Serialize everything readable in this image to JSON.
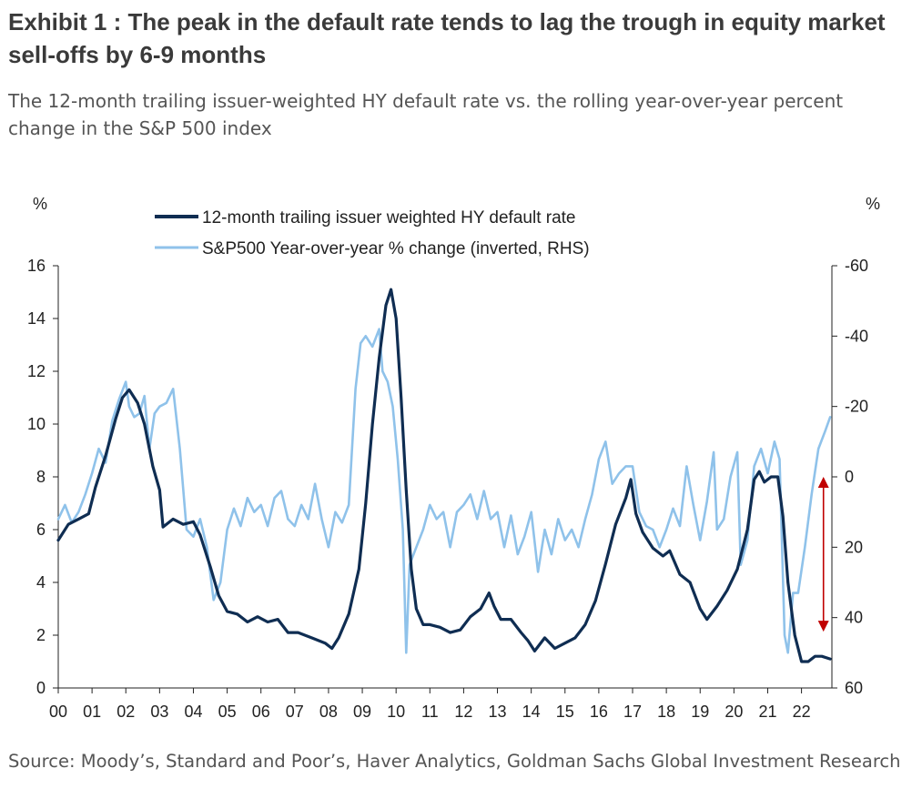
{
  "title": "Exhibit 1 : The peak in the default rate tends to lag the trough in equity market sell-offs by 6-9 months",
  "subtitle": "The 12-month trailing issuer-weighted HY default rate vs. the rolling year-over-year percent change in the S&P 500 index",
  "source": "Source: Moody’s, Standard and Poor’s, Haver Analytics, Goldman Sachs Global Investment Research",
  "colors": {
    "default_rate": "#0f2d52",
    "sp500": "#8fc2ea",
    "arrow": "#c00000",
    "axis": "#222222"
  },
  "chart_data": {
    "type": "line",
    "left_axis": {
      "unit": "%",
      "min": 0,
      "max": 16,
      "ticks": [
        0,
        2,
        4,
        6,
        8,
        10,
        12,
        14,
        16
      ]
    },
    "right_axis": {
      "unit": "%",
      "min": -60,
      "max": 60,
      "inverted": true,
      "ticks": [
        -60,
        -40,
        -20,
        0,
        20,
        40,
        60
      ]
    },
    "x_axis": {
      "min": 2000,
      "max": 2022.9,
      "tick_labels": [
        "00",
        "01",
        "02",
        "03",
        "04",
        "05",
        "06",
        "07",
        "08",
        "09",
        "10",
        "11",
        "12",
        "13",
        "14",
        "15",
        "16",
        "17",
        "18",
        "19",
        "20",
        "21",
        "22"
      ]
    },
    "grid": false,
    "legend": "top-center",
    "series": [
      {
        "name": "12-month trailing issuer weighted HY default rate",
        "axis": "left",
        "points": [
          [
            2000.0,
            5.6
          ],
          [
            2000.3,
            6.2
          ],
          [
            2000.6,
            6.4
          ],
          [
            2000.9,
            6.6
          ],
          [
            2001.1,
            7.6
          ],
          [
            2001.4,
            8.8
          ],
          [
            2001.7,
            10.2
          ],
          [
            2001.9,
            11.0
          ],
          [
            2002.1,
            11.3
          ],
          [
            2002.35,
            10.8
          ],
          [
            2002.55,
            10.0
          ],
          [
            2002.8,
            8.4
          ],
          [
            2003.0,
            7.5
          ],
          [
            2003.1,
            6.1
          ],
          [
            2003.4,
            6.4
          ],
          [
            2003.7,
            6.2
          ],
          [
            2004.0,
            6.3
          ],
          [
            2004.2,
            5.8
          ],
          [
            2004.5,
            4.6
          ],
          [
            2004.75,
            3.5
          ],
          [
            2005.0,
            2.9
          ],
          [
            2005.3,
            2.8
          ],
          [
            2005.6,
            2.5
          ],
          [
            2005.9,
            2.7
          ],
          [
            2006.2,
            2.5
          ],
          [
            2006.5,
            2.6
          ],
          [
            2006.8,
            2.1
          ],
          [
            2007.1,
            2.1
          ],
          [
            2007.5,
            1.9
          ],
          [
            2007.9,
            1.7
          ],
          [
            2008.1,
            1.5
          ],
          [
            2008.3,
            1.9
          ],
          [
            2008.6,
            2.8
          ],
          [
            2008.9,
            4.5
          ],
          [
            2009.1,
            7.0
          ],
          [
            2009.3,
            10.0
          ],
          [
            2009.5,
            12.5
          ],
          [
            2009.7,
            14.5
          ],
          [
            2009.85,
            15.1
          ],
          [
            2010.0,
            14.0
          ],
          [
            2010.15,
            11.0
          ],
          [
            2010.3,
            7.5
          ],
          [
            2010.45,
            4.5
          ],
          [
            2010.6,
            3.0
          ],
          [
            2010.8,
            2.4
          ],
          [
            2011.0,
            2.4
          ],
          [
            2011.3,
            2.3
          ],
          [
            2011.6,
            2.1
          ],
          [
            2011.9,
            2.2
          ],
          [
            2012.2,
            2.7
          ],
          [
            2012.5,
            3.0
          ],
          [
            2012.75,
            3.6
          ],
          [
            2012.9,
            3.1
          ],
          [
            2013.1,
            2.6
          ],
          [
            2013.4,
            2.6
          ],
          [
            2013.7,
            2.1
          ],
          [
            2013.9,
            1.8
          ],
          [
            2014.1,
            1.4
          ],
          [
            2014.4,
            1.9
          ],
          [
            2014.7,
            1.5
          ],
          [
            2015.0,
            1.7
          ],
          [
            2015.3,
            1.9
          ],
          [
            2015.6,
            2.4
          ],
          [
            2015.9,
            3.3
          ],
          [
            2016.2,
            4.7
          ],
          [
            2016.5,
            6.2
          ],
          [
            2016.8,
            7.2
          ],
          [
            2016.95,
            7.9
          ],
          [
            2017.1,
            6.6
          ],
          [
            2017.3,
            5.9
          ],
          [
            2017.6,
            5.3
          ],
          [
            2017.9,
            5.0
          ],
          [
            2018.1,
            5.2
          ],
          [
            2018.4,
            4.3
          ],
          [
            2018.7,
            4.0
          ],
          [
            2019.0,
            3.0
          ],
          [
            2019.2,
            2.6
          ],
          [
            2019.5,
            3.1
          ],
          [
            2019.8,
            3.7
          ],
          [
            2020.1,
            4.5
          ],
          [
            2020.4,
            6.0
          ],
          [
            2020.6,
            7.9
          ],
          [
            2020.75,
            8.2
          ],
          [
            2020.9,
            7.8
          ],
          [
            2021.1,
            8.0
          ],
          [
            2021.3,
            8.0
          ],
          [
            2021.45,
            6.5
          ],
          [
            2021.6,
            4.0
          ],
          [
            2021.8,
            2.0
          ],
          [
            2022.0,
            1.0
          ],
          [
            2022.2,
            1.0
          ],
          [
            2022.4,
            1.2
          ],
          [
            2022.6,
            1.2
          ],
          [
            2022.85,
            1.1
          ]
        ]
      },
      {
        "name": "S&P500 Year-over-year % change (inverted, RHS)",
        "axis": "right",
        "points": [
          [
            2000.0,
            12
          ],
          [
            2000.2,
            8
          ],
          [
            2000.4,
            13
          ],
          [
            2000.6,
            10
          ],
          [
            2000.8,
            5
          ],
          [
            2001.0,
            -1
          ],
          [
            2001.2,
            -8
          ],
          [
            2001.4,
            -4
          ],
          [
            2001.6,
            -16
          ],
          [
            2001.8,
            -22
          ],
          [
            2002.0,
            -27
          ],
          [
            2002.1,
            -20
          ],
          [
            2002.25,
            -17
          ],
          [
            2002.4,
            -18
          ],
          [
            2002.55,
            -23
          ],
          [
            2002.7,
            -8
          ],
          [
            2002.85,
            -18
          ],
          [
            2003.0,
            -20
          ],
          [
            2003.2,
            -21
          ],
          [
            2003.4,
            -25
          ],
          [
            2003.6,
            -8
          ],
          [
            2003.8,
            15
          ],
          [
            2004.0,
            17
          ],
          [
            2004.2,
            12
          ],
          [
            2004.4,
            20
          ],
          [
            2004.6,
            35
          ],
          [
            2004.8,
            30
          ],
          [
            2005.0,
            15
          ],
          [
            2005.2,
            9
          ],
          [
            2005.4,
            14
          ],
          [
            2005.6,
            6
          ],
          [
            2005.8,
            10
          ],
          [
            2006.0,
            8
          ],
          [
            2006.2,
            14
          ],
          [
            2006.4,
            6
          ],
          [
            2006.6,
            4
          ],
          [
            2006.8,
            12
          ],
          [
            2007.0,
            14
          ],
          [
            2007.2,
            8
          ],
          [
            2007.4,
            12
          ],
          [
            2007.6,
            2
          ],
          [
            2007.8,
            12
          ],
          [
            2008.0,
            20
          ],
          [
            2008.2,
            10
          ],
          [
            2008.4,
            13
          ],
          [
            2008.6,
            8
          ],
          [
            2008.8,
            -25
          ],
          [
            2008.95,
            -38
          ],
          [
            2009.1,
            -40
          ],
          [
            2009.3,
            -37
          ],
          [
            2009.5,
            -42
          ],
          [
            2009.6,
            -30
          ],
          [
            2009.75,
            -27
          ],
          [
            2009.9,
            -20
          ],
          [
            2010.05,
            -5
          ],
          [
            2010.2,
            15
          ],
          [
            2010.3,
            50
          ],
          [
            2010.4,
            25
          ],
          [
            2010.6,
            20
          ],
          [
            2010.8,
            15
          ],
          [
            2011.0,
            8
          ],
          [
            2011.2,
            12
          ],
          [
            2011.4,
            10
          ],
          [
            2011.6,
            20
          ],
          [
            2011.8,
            10
          ],
          [
            2012.0,
            8
          ],
          [
            2012.2,
            5
          ],
          [
            2012.4,
            12
          ],
          [
            2012.6,
            4
          ],
          [
            2012.8,
            12
          ],
          [
            2013.0,
            10
          ],
          [
            2013.2,
            20
          ],
          [
            2013.4,
            11
          ],
          [
            2013.6,
            22
          ],
          [
            2013.8,
            17
          ],
          [
            2014.0,
            10
          ],
          [
            2014.2,
            27
          ],
          [
            2014.4,
            15
          ],
          [
            2014.6,
            22
          ],
          [
            2014.8,
            12
          ],
          [
            2015.0,
            18
          ],
          [
            2015.2,
            15
          ],
          [
            2015.4,
            20
          ],
          [
            2015.6,
            12
          ],
          [
            2015.8,
            5
          ],
          [
            2016.0,
            -5
          ],
          [
            2016.2,
            -10
          ],
          [
            2016.4,
            2
          ],
          [
            2016.6,
            -1
          ],
          [
            2016.8,
            -3
          ],
          [
            2017.0,
            -3
          ],
          [
            2017.2,
            10
          ],
          [
            2017.4,
            14
          ],
          [
            2017.6,
            15
          ],
          [
            2017.8,
            20
          ],
          [
            2018.0,
            15
          ],
          [
            2018.2,
            9
          ],
          [
            2018.4,
            14
          ],
          [
            2018.6,
            -3
          ],
          [
            2018.8,
            8
          ],
          [
            2019.0,
            18
          ],
          [
            2019.2,
            7
          ],
          [
            2019.4,
            -7
          ],
          [
            2019.5,
            15
          ],
          [
            2019.7,
            12
          ],
          [
            2019.9,
            0
          ],
          [
            2020.1,
            -7
          ],
          [
            2020.2,
            25
          ],
          [
            2020.4,
            18
          ],
          [
            2020.6,
            -3
          ],
          [
            2020.8,
            -8
          ],
          [
            2021.0,
            -1
          ],
          [
            2021.2,
            -10
          ],
          [
            2021.35,
            -5
          ],
          [
            2021.5,
            45
          ],
          [
            2021.6,
            50
          ],
          [
            2021.75,
            33
          ],
          [
            2021.9,
            33
          ],
          [
            2022.1,
            20
          ],
          [
            2022.3,
            5
          ],
          [
            2022.5,
            -8
          ],
          [
            2022.7,
            -13
          ],
          [
            2022.85,
            -17
          ]
        ]
      }
    ]
  }
}
